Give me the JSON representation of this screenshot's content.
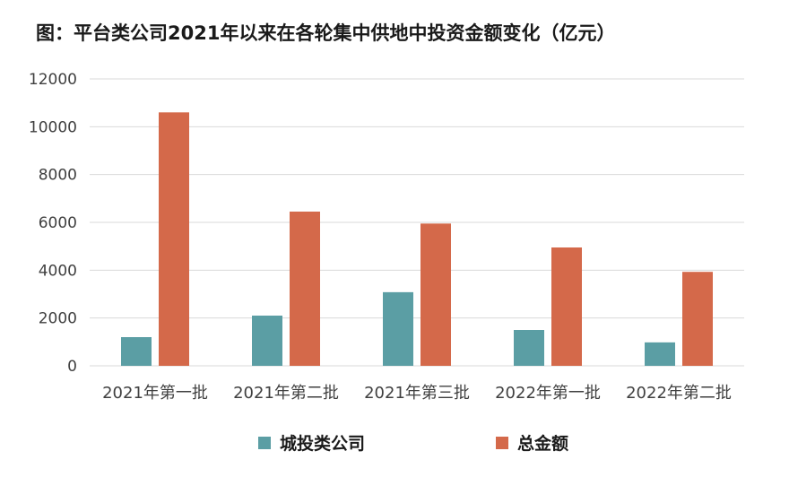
{
  "chart_data": {
    "type": "bar",
    "title": "图：平台类公司2021年以来在各轮集中供地中投资金额变化（亿元）",
    "categories": [
      "2021年第一批",
      "2021年第二批",
      "2021年第三批",
      "2022年第一批",
      "2022年第二批"
    ],
    "series": [
      {
        "name": "城投类公司",
        "color": "#5b9ea4",
        "values": [
          1200,
          2100,
          3080,
          1500,
          980
        ]
      },
      {
        "name": "总金额",
        "color": "#d4694a",
        "values": [
          10600,
          6450,
          5950,
          4950,
          3930
        ]
      }
    ],
    "yticks": [
      "0",
      "2000",
      "4000",
      "6000",
      "8000",
      "10000",
      "12000"
    ],
    "ylim": [
      0,
      12000
    ],
    "grid": true,
    "legend": "bottom"
  }
}
